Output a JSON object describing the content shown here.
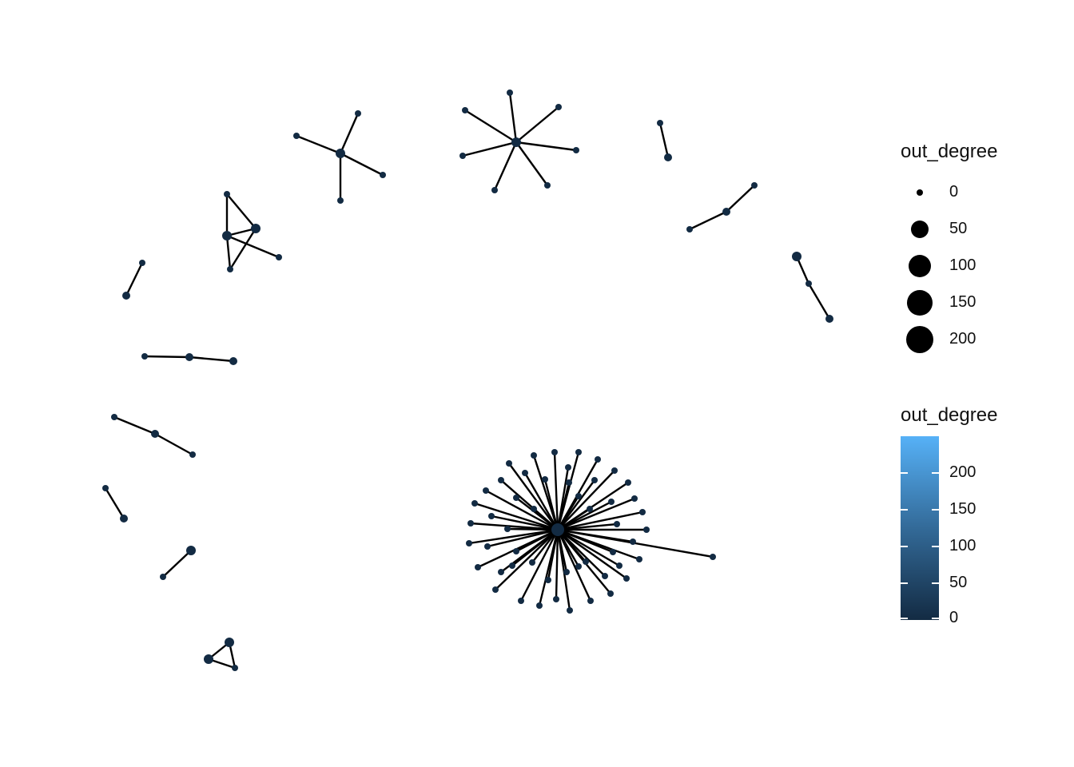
{
  "colors": {
    "edge": "#000000",
    "node_low": "#132B43",
    "node_high": "#56B1F7"
  },
  "legend_size": {
    "title": "out_degree",
    "entries": [
      {
        "label": "0",
        "value": 0
      },
      {
        "label": "50",
        "value": 50
      },
      {
        "label": "100",
        "value": 100
      },
      {
        "label": "150",
        "value": 150
      },
      {
        "label": "200",
        "value": 200
      }
    ]
  },
  "legend_color": {
    "title": "out_degree",
    "range": [
      0,
      250
    ],
    "ticks": [
      {
        "label": "200",
        "value": 200
      },
      {
        "label": "150",
        "value": 150
      },
      {
        "label": "100",
        "value": 100
      },
      {
        "label": "50",
        "value": 50
      },
      {
        "label": "0",
        "value": 0
      }
    ]
  }
}
